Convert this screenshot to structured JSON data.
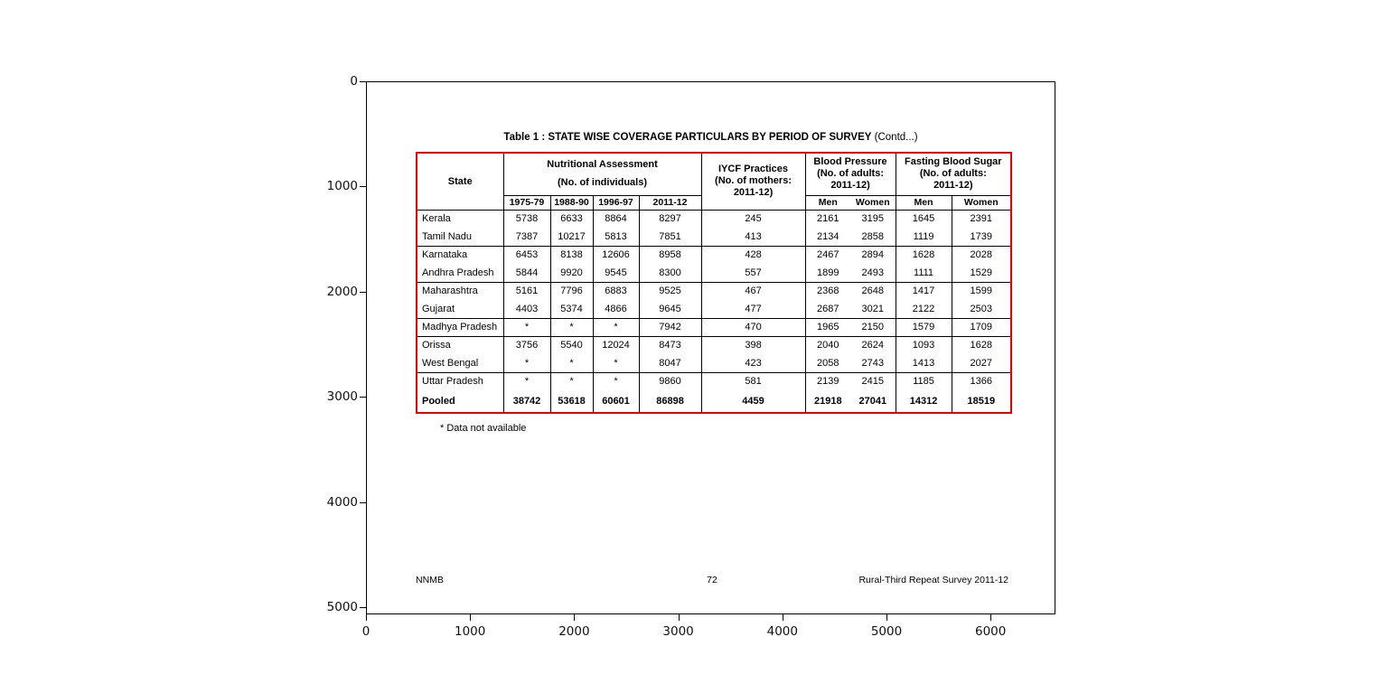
{
  "figure": {
    "y_ticks": [
      "0",
      "1000",
      "2000",
      "3000",
      "4000",
      "5000"
    ],
    "x_ticks": [
      "0",
      "1000",
      "2000",
      "3000",
      "4000",
      "5000",
      "6000"
    ]
  },
  "page": {
    "title_main": "Table 1 : STATE WISE COVERAGE PARTICULARS BY PERIOD OF SURVEY",
    "title_note": "(Contd...)",
    "footnote": "* Data not available",
    "footer_left": "NNMB",
    "footer_center": "72",
    "footer_right": "Rural-Third Repeat Survey 2011-12"
  },
  "table": {
    "border_color": "#e60000",
    "header": {
      "state": "State",
      "nutritional": {
        "line1": "Nutritional Assessment",
        "line2": "(No. of individuals)",
        "years": [
          "1975-79",
          "1988-90",
          "1996-97",
          "2011-12"
        ]
      },
      "iycf": {
        "line1": "IYCF Practices",
        "line2": "(No. of mothers:",
        "line3": "2011-12)"
      },
      "blood_pressure": {
        "line1": "Blood Pressure",
        "line2": "(No. of adults:",
        "line3": "2011-12)",
        "sub": [
          "Men",
          "Women"
        ]
      },
      "fasting_blood_sugar": {
        "line1": "Fasting Blood Sugar",
        "line2": "(No. of adults:",
        "line3": "2011-12)",
        "sub": [
          "Men",
          "Women"
        ]
      }
    },
    "rows": [
      {
        "state": "Kerala",
        "group_start": true,
        "bold": false,
        "values": [
          "5738",
          "6633",
          "8864",
          "8297",
          "245",
          "2161",
          "3195",
          "1645",
          "2391"
        ]
      },
      {
        "state": "Tamil Nadu",
        "group_start": false,
        "bold": false,
        "values": [
          "7387",
          "10217",
          "5813",
          "7851",
          "413",
          "2134",
          "2858",
          "1119",
          "1739"
        ]
      },
      {
        "state": "Karnataka",
        "group_start": true,
        "bold": false,
        "values": [
          "6453",
          "8138",
          "12606",
          "8958",
          "428",
          "2467",
          "2894",
          "1628",
          "2028"
        ]
      },
      {
        "state": "Andhra Pradesh",
        "group_start": false,
        "bold": false,
        "values": [
          "5844",
          "9920",
          "9545",
          "8300",
          "557",
          "1899",
          "2493",
          "1111",
          "1529"
        ]
      },
      {
        "state": "Maharashtra",
        "group_start": true,
        "bold": false,
        "values": [
          "5161",
          "7796",
          "6883",
          "9525",
          "467",
          "2368",
          "2648",
          "1417",
          "1599"
        ]
      },
      {
        "state": "Gujarat",
        "group_start": false,
        "bold": false,
        "values": [
          "4403",
          "5374",
          "4866",
          "9645",
          "477",
          "2687",
          "3021",
          "2122",
          "2503"
        ]
      },
      {
        "state": "Madhya Pradesh",
        "group_start": true,
        "bold": false,
        "values": [
          "*",
          "*",
          "*",
          "7942",
          "470",
          "1965",
          "2150",
          "1579",
          "1709"
        ]
      },
      {
        "state": "Orissa",
        "group_start": true,
        "bold": false,
        "values": [
          "3756",
          "5540",
          "12024",
          "8473",
          "398",
          "2040",
          "2624",
          "1093",
          "1628"
        ]
      },
      {
        "state": "West Bengal",
        "group_start": false,
        "bold": false,
        "values": [
          "*",
          "*",
          "*",
          "8047",
          "423",
          "2058",
          "2743",
          "1413",
          "2027"
        ]
      },
      {
        "state": "Uttar Pradesh",
        "group_start": true,
        "bold": false,
        "values": [
          "*",
          "*",
          "*",
          "9860",
          "581",
          "2139",
          "2415",
          "1185",
          "1366"
        ]
      },
      {
        "state": "Pooled",
        "group_start": false,
        "bold": true,
        "values": [
          "38742",
          "53618",
          "60601",
          "86898",
          "4459",
          "21918",
          "27041",
          "14312",
          "18519"
        ]
      }
    ]
  }
}
